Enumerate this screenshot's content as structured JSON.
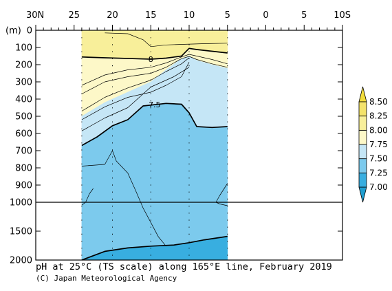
{
  "chart_data": {
    "type": "heatmap",
    "title": "pH at 25°C (TS scale) along 165°E line, February 2019",
    "credit": "(C) Japan Meteorological Agency",
    "y_unit_label": "(m)",
    "x_ticks": [
      {
        "lat": 30,
        "label": "30N"
      },
      {
        "lat": 25,
        "label": "25"
      },
      {
        "lat": 20,
        "label": "20"
      },
      {
        "lat": 15,
        "label": "15"
      },
      {
        "lat": 10,
        "label": "10"
      },
      {
        "lat": 5,
        "label": "5"
      },
      {
        "lat": 0,
        "label": "0"
      },
      {
        "lat": -5,
        "label": "5"
      },
      {
        "lat": -10,
        "label": "10S"
      }
    ],
    "x_range": [
      30,
      -10
    ],
    "y_ticks_upper": [
      0,
      100,
      200,
      300,
      400,
      500,
      600,
      700,
      800,
      900,
      1000
    ],
    "y_ticks_lower": [
      1000,
      1500,
      2000
    ],
    "y_break_depth": 1000,
    "y_range": [
      0,
      2000
    ],
    "data_lat_range": [
      24,
      5
    ],
    "station_lats": [
      24,
      20,
      15,
      10,
      5
    ],
    "colorbar": {
      "levels": [
        7.0,
        7.25,
        7.5,
        7.75,
        8.0,
        8.25,
        8.5
      ],
      "labels": [
        "7.00",
        "7.25",
        "7.50",
        "7.75",
        "8.00",
        "8.25",
        "8.50"
      ],
      "colors": [
        "#1f9ed0",
        "#38aee0",
        "#7ccaed",
        "#c5e6f6",
        "#fdf8c8",
        "#f8ef9a",
        "#f4e36b",
        "#f2dc3b"
      ],
      "extend": "both"
    },
    "bands": [
      {
        "range": "8.25-8.50",
        "color": "#f4e36b",
        "top": [
          [
            24,
            0
          ],
          [
            5,
            0
          ]
        ],
        "bottom": [
          [
            24,
            0
          ],
          [
            5,
            0
          ]
        ]
      },
      {
        "range": "8.00-8.25",
        "color": "#f8ef9a",
        "top": [
          [
            24,
            0
          ],
          [
            5,
            0
          ]
        ],
        "bottom": [
          [
            24,
            155
          ],
          [
            21,
            160
          ],
          [
            17,
            165
          ],
          [
            15,
            168
          ],
          [
            13,
            162
          ],
          [
            11,
            150
          ],
          [
            10,
            105
          ],
          [
            9,
            112
          ],
          [
            7,
            122
          ],
          [
            5,
            132
          ]
        ]
      },
      {
        "range": "7.75-8.00",
        "color": "#fdf8c8",
        "top": [
          [
            24,
            155
          ],
          [
            21,
            160
          ],
          [
            17,
            165
          ],
          [
            15,
            168
          ],
          [
            13,
            162
          ],
          [
            11,
            150
          ],
          [
            10,
            105
          ],
          [
            9,
            112
          ],
          [
            7,
            122
          ],
          [
            5,
            132
          ]
        ],
        "bottom": [
          [
            24,
            500
          ],
          [
            21,
            420
          ],
          [
            18,
            360
          ],
          [
            15,
            300
          ],
          [
            13,
            230
          ],
          [
            11,
            165
          ],
          [
            10,
            150
          ],
          [
            9,
            175
          ],
          [
            7,
            200
          ],
          [
            5,
            222
          ]
        ]
      },
      {
        "range": "7.50-7.75",
        "color": "#c5e6f6",
        "top": [
          [
            24,
            500
          ],
          [
            21,
            420
          ],
          [
            18,
            360
          ],
          [
            15,
            300
          ],
          [
            13,
            230
          ],
          [
            11,
            165
          ],
          [
            10,
            150
          ],
          [
            9,
            175
          ],
          [
            7,
            200
          ],
          [
            5,
            222
          ]
        ],
        "bottom": [
          [
            24,
            670
          ],
          [
            22,
            620
          ],
          [
            20,
            555
          ],
          [
            18,
            520
          ],
          [
            16,
            440
          ],
          [
            13,
            425
          ],
          [
            11,
            430
          ],
          [
            10,
            480
          ],
          [
            9,
            560
          ],
          [
            7,
            565
          ],
          [
            5,
            560
          ]
        ]
      },
      {
        "range": "7.25-7.50",
        "color": "#7ccaed",
        "top": [
          [
            24,
            670
          ],
          [
            22,
            620
          ],
          [
            20,
            555
          ],
          [
            18,
            520
          ],
          [
            16,
            440
          ],
          [
            13,
            425
          ],
          [
            11,
            430
          ],
          [
            10,
            480
          ],
          [
            9,
            560
          ],
          [
            7,
            565
          ],
          [
            5,
            560
          ]
        ],
        "bottom": [
          [
            24,
            2000
          ],
          [
            21,
            1850
          ],
          [
            18,
            1790
          ],
          [
            15,
            1760
          ],
          [
            12,
            1740
          ],
          [
            10,
            1700
          ],
          [
            8,
            1650
          ],
          [
            5,
            1590
          ]
        ]
      },
      {
        "range": "7.00-7.25",
        "color": "#38aee0",
        "top": [
          [
            24,
            2000
          ],
          [
            21,
            1850
          ],
          [
            18,
            1790
          ],
          [
            15,
            1760
          ],
          [
            12,
            1740
          ],
          [
            10,
            1700
          ],
          [
            8,
            1650
          ],
          [
            5,
            1590
          ]
        ],
        "bottom": [
          [
            24,
            2000
          ],
          [
            5,
            2000
          ]
        ]
      }
    ],
    "contours": [
      {
        "level": "8.00",
        "label": "8",
        "label_at": [
          15,
          168
        ],
        "bold": true,
        "points": [
          [
            24,
            155
          ],
          [
            21,
            160
          ],
          [
            17,
            165
          ],
          [
            15,
            168
          ],
          [
            13,
            162
          ],
          [
            11,
            150
          ],
          [
            10,
            105
          ],
          [
            9,
            112
          ],
          [
            7,
            122
          ],
          [
            5,
            132
          ]
        ]
      },
      {
        "level": "7.50",
        "label": "7.5",
        "label_at": [
          14.5,
          432
        ],
        "bold": true,
        "points": [
          [
            24,
            670
          ],
          [
            22,
            620
          ],
          [
            20,
            555
          ],
          [
            18,
            520
          ],
          [
            16,
            440
          ],
          [
            13,
            425
          ],
          [
            11,
            430
          ],
          [
            10,
            480
          ],
          [
            9,
            560
          ],
          [
            7,
            565
          ],
          [
            5,
            560
          ]
        ]
      },
      {
        "level": "7.25",
        "label": "",
        "bold": true,
        "points": [
          [
            24,
            2000
          ],
          [
            21,
            1850
          ],
          [
            18,
            1790
          ],
          [
            15,
            1760
          ],
          [
            12,
            1740
          ],
          [
            10,
            1700
          ],
          [
            8,
            1650
          ],
          [
            5,
            1590
          ]
        ]
      },
      {
        "level": "8.05",
        "label": "",
        "bold": false,
        "points": [
          [
            5,
            75
          ],
          [
            8,
            78
          ],
          [
            11,
            82
          ],
          [
            13,
            85
          ],
          [
            15,
            95
          ],
          [
            16,
            55
          ],
          [
            18,
            20
          ],
          [
            21,
            15
          ]
        ]
      },
      {
        "level": "7.95",
        "label": "",
        "bold": false,
        "points": [
          [
            24,
            320
          ],
          [
            21,
            260
          ],
          [
            18,
            230
          ],
          [
            15,
            215
          ],
          [
            13,
            190
          ],
          [
            11,
            155
          ],
          [
            10,
            140
          ],
          [
            9,
            150
          ],
          [
            7,
            170
          ],
          [
            5,
            195
          ]
        ]
      },
      {
        "level": "7.90",
        "label": "",
        "bold": false,
        "points": [
          [
            24,
            370
          ],
          [
            21,
            300
          ],
          [
            18,
            270
          ],
          [
            15,
            250
          ],
          [
            13,
            215
          ],
          [
            11,
            165
          ],
          [
            10,
            152
          ],
          [
            9,
            170
          ],
          [
            7,
            195
          ],
          [
            5,
            215
          ]
        ]
      },
      {
        "level": "7.80",
        "label": "",
        "bold": false,
        "points": [
          [
            24,
            470
          ],
          [
            21,
            390
          ],
          [
            18,
            335
          ],
          [
            15,
            290
          ],
          [
            13,
            240
          ],
          [
            11,
            195
          ],
          [
            10,
            160
          ]
        ]
      },
      {
        "level": "7.70",
        "label": "",
        "bold": false,
        "points": [
          [
            24,
            520
          ],
          [
            21,
            445
          ],
          [
            18,
            390
          ],
          [
            15,
            360
          ],
          [
            13,
            320
          ],
          [
            11,
            270
          ],
          [
            10,
            185
          ]
        ]
      },
      {
        "level": "7.65",
        "label": "",
        "bold": false,
        "points": [
          [
            24,
            585
          ],
          [
            21,
            510
          ],
          [
            18,
            450
          ],
          [
            15,
            330
          ],
          [
            12,
            270
          ],
          [
            10,
            215
          ]
        ]
      },
      {
        "level": "7.45",
        "label": "",
        "bold": false,
        "points": [
          [
            24,
            790
          ],
          [
            21,
            780
          ],
          [
            20,
            700
          ],
          [
            19.5,
            760
          ],
          [
            18,
            830
          ],
          [
            17,
            930
          ],
          [
            16,
            1100
          ],
          [
            15,
            1350
          ],
          [
            14,
            1600
          ],
          [
            13,
            1760
          ]
        ]
      },
      {
        "level": "7.45",
        "label": "",
        "bold": false,
        "points": [
          [
            24,
            1050
          ],
          [
            23.5,
            1000
          ],
          [
            23,
            950
          ],
          [
            22.5,
            920
          ]
        ]
      },
      {
        "level": "7.40",
        "label": "",
        "bold": false,
        "points": [
          [
            5,
            890
          ],
          [
            6,
            960
          ],
          [
            6.5,
            1000
          ],
          [
            6,
            1030
          ],
          [
            5,
            1060
          ]
        ]
      }
    ]
  }
}
